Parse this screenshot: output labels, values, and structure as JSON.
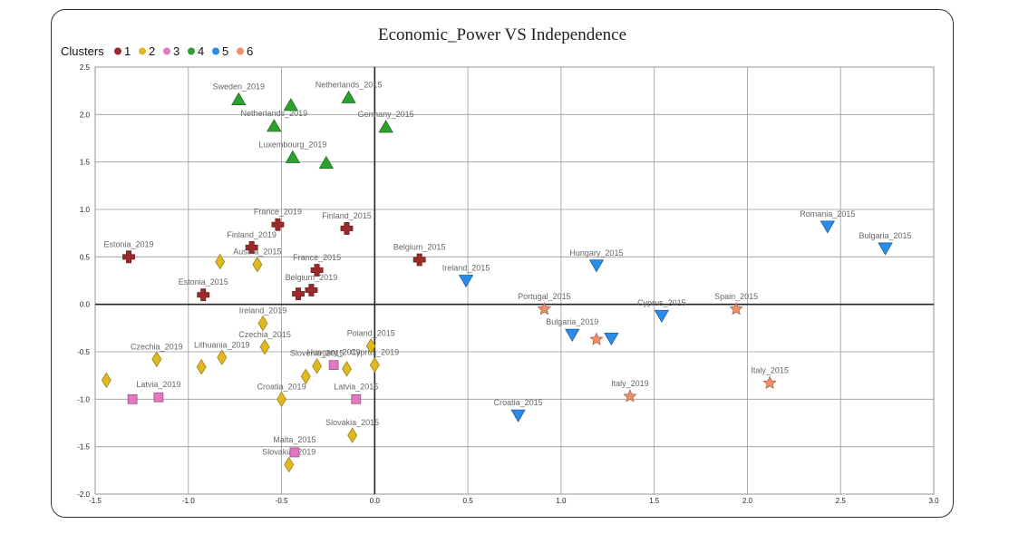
{
  "chart_data": {
    "type": "scatter",
    "title": "Economic_Power VS Independence",
    "xlabel": "",
    "ylabel": "",
    "xlim": [
      -1.5,
      3.0
    ],
    "ylim": [
      -2.0,
      2.5
    ],
    "xticks": [
      "-1.5",
      "-1.0",
      "-0.5",
      "0.0",
      "0.5",
      "1.0",
      "1.5",
      "2.0",
      "2.5",
      "3.0"
    ],
    "yticks": [
      "2.5",
      "2.0",
      "1.5",
      "1.0",
      "0.5",
      "0.0",
      "-0.5",
      "-1.0",
      "-1.5",
      "-2.0"
    ],
    "grid": true,
    "legend": {
      "title": "Clusters",
      "placement": "top-left"
    },
    "series": [
      {
        "name": "1",
        "color": "#9b2a2a",
        "marker": "cross",
        "points": [
          {
            "x": -1.32,
            "y": 0.5,
            "label": "Estonia_2019"
          },
          {
            "x": -0.92,
            "y": 0.1,
            "label": "Estonia_2015"
          },
          {
            "x": -0.66,
            "y": 0.6,
            "label": "Finland_2019"
          },
          {
            "x": -0.52,
            "y": 0.84,
            "label": "France_2019"
          },
          {
            "x": -0.15,
            "y": 0.8,
            "label": "Finland_2015"
          },
          {
            "x": -0.31,
            "y": 0.36,
            "label": "France_2015"
          },
          {
            "x": -0.34,
            "y": 0.15,
            "label": "Belgium_2019"
          },
          {
            "x": -0.41,
            "y": 0.11,
            "label": ""
          },
          {
            "x": 0.24,
            "y": 0.47,
            "label": "Belgium_2015"
          }
        ]
      },
      {
        "name": "2",
        "color": "#e0b820",
        "marker": "diamond",
        "points": [
          {
            "x": -1.44,
            "y": -0.8,
            "label": ""
          },
          {
            "x": -1.17,
            "y": -0.58,
            "label": "Czechia_2019"
          },
          {
            "x": -0.93,
            "y": -0.66,
            "label": ""
          },
          {
            "x": -0.82,
            "y": -0.56,
            "label": "Lithuania_2019"
          },
          {
            "x": -0.83,
            "y": 0.45,
            "label": ""
          },
          {
            "x": -0.63,
            "y": 0.42,
            "label": "Austria_2015"
          },
          {
            "x": -0.6,
            "y": -0.2,
            "label": "Ireland_2019"
          },
          {
            "x": -0.59,
            "y": -0.45,
            "label": "Czechia_2015"
          },
          {
            "x": -0.5,
            "y": -1.0,
            "label": "Croatia_2019"
          },
          {
            "x": -0.37,
            "y": -0.76,
            "label": ""
          },
          {
            "x": -0.31,
            "y": -0.65,
            "label": "Slovenia_2015"
          },
          {
            "x": -0.15,
            "y": -0.68,
            "label": ""
          },
          {
            "x": -0.02,
            "y": -0.44,
            "label": "Poland_2015"
          },
          {
            "x": 0.0,
            "y": -0.64,
            "label": "Cyprus_2019"
          },
          {
            "x": -0.12,
            "y": -1.38,
            "label": "Slovakia_2015"
          },
          {
            "x": -0.46,
            "y": -1.69,
            "label": "Slovakia_2019"
          }
        ]
      },
      {
        "name": "3",
        "color": "#e377c2",
        "marker": "square",
        "points": [
          {
            "x": -1.3,
            "y": -1.0,
            "label": ""
          },
          {
            "x": -1.16,
            "y": -0.98,
            "label": "Latvia_2019"
          },
          {
            "x": -0.22,
            "y": -0.64,
            "label": "Hungary_2019"
          },
          {
            "x": -0.1,
            "y": -1.0,
            "label": "Latvia_2015"
          },
          {
            "x": -0.43,
            "y": -1.56,
            "label": "Malta_2015"
          }
        ]
      },
      {
        "name": "4",
        "color": "#2ca02c",
        "marker": "triangle-up",
        "points": [
          {
            "x": -0.73,
            "y": 2.16,
            "label": "Sweden_2019"
          },
          {
            "x": -0.45,
            "y": 2.1,
            "label": ""
          },
          {
            "x": -0.14,
            "y": 2.18,
            "label": "Netherlands_2015"
          },
          {
            "x": -0.54,
            "y": 1.88,
            "label": "Netherlands_2019"
          },
          {
            "x": 0.06,
            "y": 1.87,
            "label": "Germany_2015"
          },
          {
            "x": -0.44,
            "y": 1.55,
            "label": "Luxembourg_2019"
          },
          {
            "x": -0.26,
            "y": 1.49,
            "label": ""
          }
        ]
      },
      {
        "name": "5",
        "color": "#2a8ce8",
        "marker": "triangle-down",
        "points": [
          {
            "x": 0.49,
            "y": 0.25,
            "label": "Ireland_2015"
          },
          {
            "x": 1.19,
            "y": 0.41,
            "label": "Hungary_2015"
          },
          {
            "x": 1.54,
            "y": -0.12,
            "label": "Cyprus_2015"
          },
          {
            "x": 1.06,
            "y": -0.32,
            "label": "Bulgaria_2019"
          },
          {
            "x": 1.27,
            "y": -0.36,
            "label": ""
          },
          {
            "x": 0.77,
            "y": -1.17,
            "label": "Croatia_2015"
          },
          {
            "x": 2.43,
            "y": 0.82,
            "label": "Romania_2015"
          },
          {
            "x": 2.74,
            "y": 0.59,
            "label": "Bulgaria_2015"
          }
        ]
      },
      {
        "name": "6",
        "color": "#f0906a",
        "marker": "star",
        "points": [
          {
            "x": 0.91,
            "y": -0.05,
            "label": "Portugal_2015"
          },
          {
            "x": 1.19,
            "y": -0.37,
            "label": ""
          },
          {
            "x": 1.37,
            "y": -0.97,
            "label": "Italy_2019"
          },
          {
            "x": 1.94,
            "y": -0.05,
            "label": "Spain_2015"
          },
          {
            "x": 2.12,
            "y": -0.83,
            "label": "Italy_2015"
          }
        ]
      }
    ]
  }
}
